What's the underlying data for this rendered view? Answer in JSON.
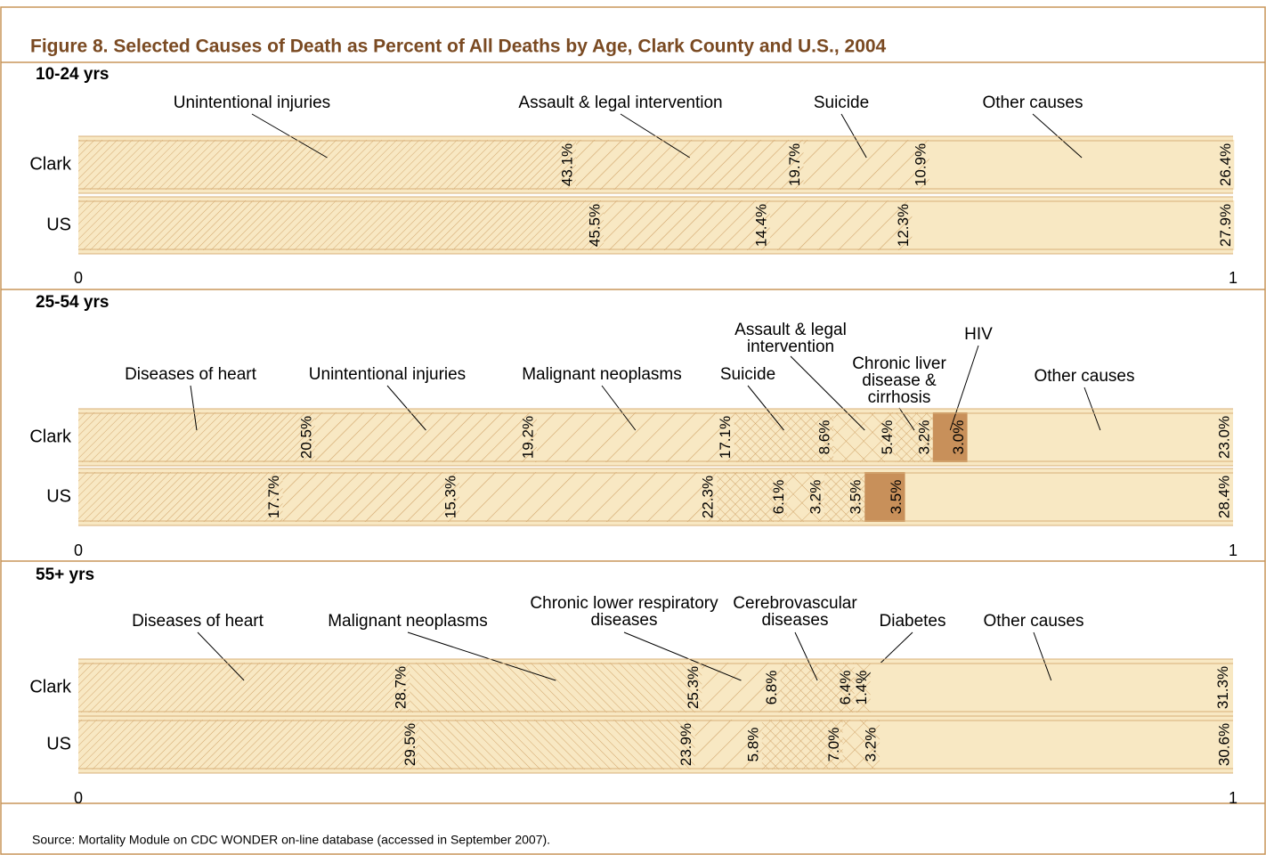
{
  "title": "Figure 8. Selected Causes of Death as Percent of All Deaths by Age, Clark County and U.S., 2004",
  "source": "Source: Mortality Module on CDC WONDER on-line database (accessed in September 2007).",
  "chart_data": [
    {
      "type": "bar",
      "subtitle": "10-24 yrs",
      "categories": [
        "Clark",
        "US"
      ],
      "xlim": [
        0,
        1
      ],
      "xticks": [
        0,
        1
      ],
      "series": [
        {
          "name": "Unintentional injuries",
          "pattern": "fine",
          "values": [
            0.431,
            0.455
          ],
          "value_labels": [
            "43.1%",
            "45.5%"
          ]
        },
        {
          "name": "Assault & legal intervention",
          "pattern": "mid",
          "values": [
            0.197,
            0.144
          ],
          "value_labels": [
            "19.7%",
            "14.4%"
          ]
        },
        {
          "name": "Suicide",
          "pattern": "wide",
          "values": [
            0.109,
            0.123
          ],
          "value_labels": [
            "10.9%",
            "12.3%"
          ]
        },
        {
          "name": "Other causes",
          "pattern": "none",
          "values": [
            0.264,
            0.279
          ],
          "value_labels": [
            "26.4%",
            "27.9%"
          ]
        }
      ]
    },
    {
      "type": "bar",
      "subtitle": "25-54 yrs",
      "categories": [
        "Clark",
        "US"
      ],
      "xlim": [
        0,
        1
      ],
      "xticks": [
        0,
        1
      ],
      "series": [
        {
          "name": "Diseases of heart",
          "pattern": "fine",
          "values": [
            0.205,
            0.177
          ],
          "value_labels": [
            "20.5%",
            "17.7%"
          ]
        },
        {
          "name": "Unintentional injuries",
          "pattern": "mid",
          "values": [
            0.192,
            0.153
          ],
          "value_labels": [
            "19.2%",
            "15.3%"
          ]
        },
        {
          "name": "Malignant neoplasms",
          "pattern": "wide",
          "values": [
            0.171,
            0.223
          ],
          "value_labels": [
            "17.1%",
            "22.3%"
          ]
        },
        {
          "name": "Suicide",
          "pattern": "cross",
          "values": [
            0.086,
            0.061
          ],
          "value_labels": [
            "8.6%",
            "6.1%"
          ]
        },
        {
          "name": "Assault & legal intervention",
          "pattern": "crosswide",
          "values": [
            0.054,
            0.032
          ],
          "value_labels": [
            "5.4%",
            "3.2%"
          ]
        },
        {
          "name": "Chronic liver disease & cirrhosis",
          "pattern": "cross",
          "values": [
            0.032,
            0.035
          ],
          "value_labels": [
            "3.2%",
            "3.5%"
          ]
        },
        {
          "name": "HIV",
          "pattern": "solid",
          "values": [
            0.03,
            0.035
          ],
          "value_labels": [
            "3.0%",
            "3.5%"
          ]
        },
        {
          "name": "Other causes",
          "pattern": "none",
          "values": [
            0.23,
            0.284
          ],
          "value_labels": [
            "23.0%",
            "28.4%"
          ]
        }
      ]
    },
    {
      "type": "bar",
      "subtitle": "55+ yrs",
      "categories": [
        "Clark",
        "US"
      ],
      "xlim": [
        0,
        1
      ],
      "xticks": [
        0,
        1
      ],
      "series": [
        {
          "name": "Diseases of heart",
          "pattern": "fine",
          "values": [
            0.287,
            0.295
          ],
          "value_labels": [
            "28.7%",
            "29.5%"
          ]
        },
        {
          "name": "Malignant neoplasms",
          "pattern": "back",
          "values": [
            0.253,
            0.239
          ],
          "value_labels": [
            "25.3%",
            "23.9%"
          ]
        },
        {
          "name": "Chronic lower respiratory diseases",
          "pattern": "wide",
          "values": [
            0.068,
            0.058
          ],
          "value_labels": [
            "6.8%",
            "5.8%"
          ]
        },
        {
          "name": "Cerebrovascular diseases",
          "pattern": "cross",
          "values": [
            0.064,
            0.07
          ],
          "value_labels": [
            "6.4%",
            "7.0%"
          ]
        },
        {
          "name": "Diabetes",
          "pattern": "crosswide",
          "values": [
            0.014,
            0.032
          ],
          "value_labels": [
            "1.4%",
            "3.2%"
          ]
        },
        {
          "name": "Other causes",
          "pattern": "none",
          "values": [
            0.313,
            0.306
          ],
          "value_labels": [
            "31.3%",
            "30.6%"
          ]
        }
      ]
    }
  ]
}
